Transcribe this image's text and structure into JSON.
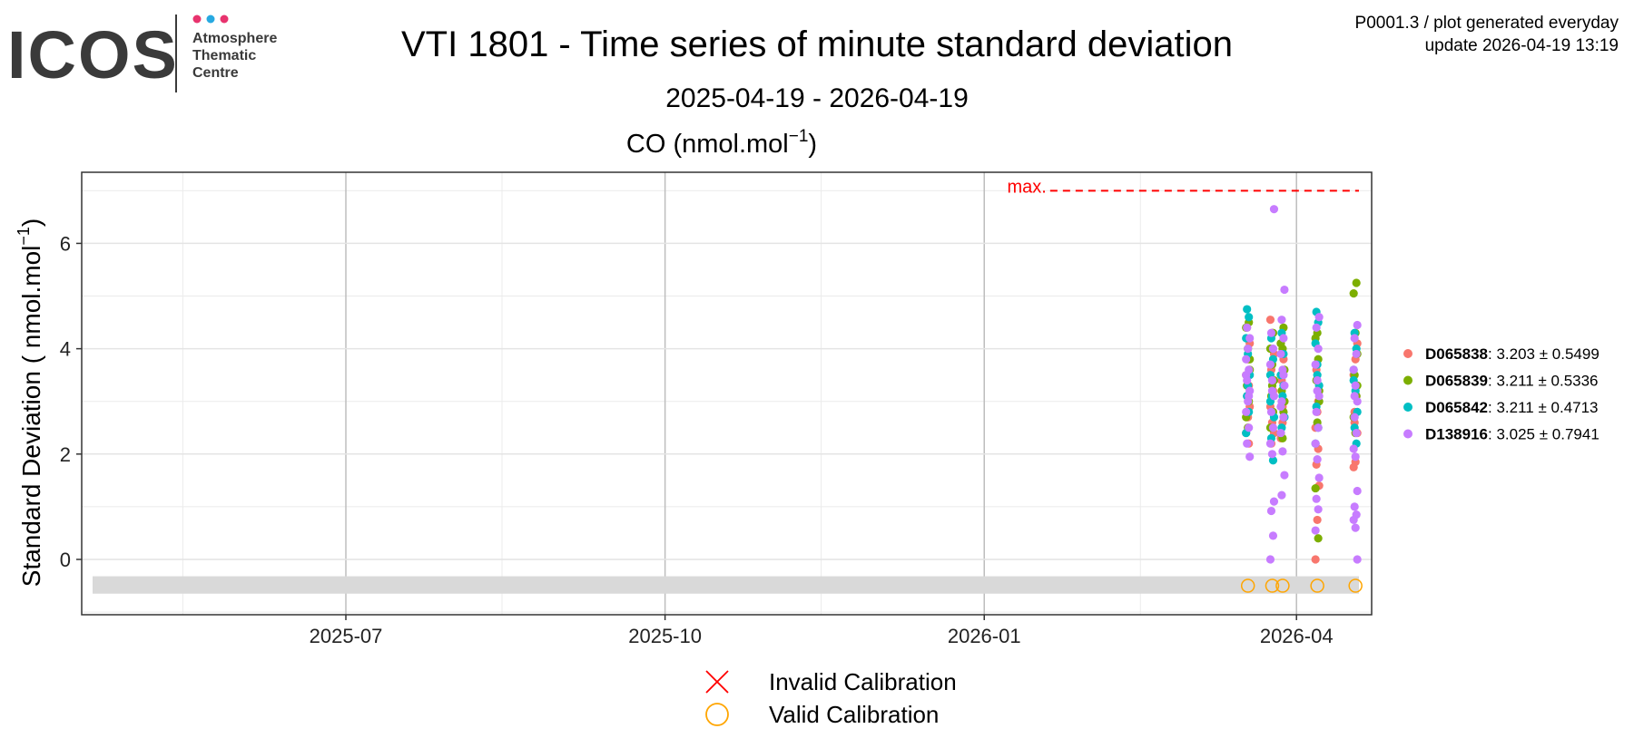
{
  "header": {
    "logo_text": "ICOS",
    "logo_sub": [
      "Atmosphere",
      "Thematic",
      "Centre"
    ],
    "logo_dot_colors": [
      "#e8336e",
      "#27a9e1",
      "#e8336e"
    ],
    "title": "VTI 1801 - Time series of minute standard deviation",
    "subtitle": "2025-04-19 - 2026-04-19",
    "meta_line1": "P0001.3 / plot generated everyday",
    "meta_line2": "update  2026-04-19 13:19"
  },
  "chart_data": {
    "type": "scatter",
    "panel_title_base": "CO (nmol.mol",
    "panel_title_exp": "−1",
    "panel_title_close": ")",
    "ylabel_base": "Standard Deviation ( nmol.mol",
    "ylabel_exp": "−1",
    "ylabel_close": ")",
    "xlim": [
      "2025-04-19",
      "2026-04-19"
    ],
    "ylim": [
      -1.05,
      7.35
    ],
    "x_ticks": [
      "2025-07",
      "2025-10",
      "2026-01",
      "2026-04"
    ],
    "y_ticks": [
      0,
      2,
      4,
      6
    ],
    "grid": true,
    "max_line": {
      "label": "max.",
      "value": 7.0,
      "from": "2026-01-20",
      "to": "2026-04-19",
      "color": "#ff0000"
    },
    "calibration_band": [
      -0.65,
      -0.32
    ],
    "valid_calibrations": {
      "y": -0.5,
      "dates": [
        "2026-03-18",
        "2026-03-25",
        "2026-03-28",
        "2026-04-07",
        "2026-04-18"
      ],
      "color": "#ffa500"
    },
    "legend_position": "right",
    "series": [
      {
        "name": "D065838",
        "stat": ": 3.203 ± 0.5499",
        "color": "#f8766d",
        "clusters": [
          {
            "date": "2026-03-18",
            "points": [
              2.4,
              2.7,
              2.9,
              3.1,
              3.3,
              3.5,
              3.8,
              4.1,
              4.4,
              2.2
            ]
          },
          {
            "date": "2026-03-25",
            "points": [
              4.55,
              4.3,
              3.9,
              3.6,
              3.2,
              2.9,
              2.6,
              2.4,
              2.2,
              3.4
            ]
          },
          {
            "date": "2026-03-28",
            "points": [
              2.3,
              2.6,
              3.0,
              3.4,
              3.8,
              4.1,
              2.9
            ]
          },
          {
            "date": "2026-04-07",
            "points": [
              0.0,
              0.75,
              1.4,
              1.8,
              2.1,
              2.5,
              2.8,
              3.2,
              3.6,
              3.0
            ]
          },
          {
            "date": "2026-04-18",
            "points": [
              1.75,
              1.85,
              2.4,
              2.8,
              3.1,
              3.5,
              3.8,
              4.1,
              2.6
            ]
          }
        ]
      },
      {
        "name": "D065839",
        "stat": ": 3.211 ± 0.5336",
        "color": "#7cae00",
        "clusters": [
          {
            "date": "2026-03-18",
            "points": [
              4.5,
              4.4,
              4.0,
              3.6,
              3.3,
              3.0,
              2.7,
              2.5,
              3.8
            ]
          },
          {
            "date": "2026-03-25",
            "points": [
              4.3,
              4.0,
              3.7,
              3.4,
              3.1,
              2.8,
              2.5,
              3.3
            ]
          },
          {
            "date": "2026-03-28",
            "points": [
              4.4,
              4.1,
              4.0,
              3.6,
              3.2,
              2.8,
              2.4,
              2.3,
              3.0
            ]
          },
          {
            "date": "2026-04-07",
            "points": [
              0.4,
              1.35,
              2.6,
              3.0,
              3.4,
              3.8,
              4.2,
              4.3,
              3.2
            ]
          },
          {
            "date": "2026-04-18",
            "points": [
              5.25,
              5.05,
              4.3,
              3.9,
              3.5,
              3.1,
              2.7,
              2.4,
              3.3
            ]
          }
        ]
      },
      {
        "name": "D065842",
        "stat": ": 3.211 ± 0.4713",
        "color": "#00bfc4",
        "clusters": [
          {
            "date": "2026-03-18",
            "points": [
              4.75,
              4.6,
              4.2,
              3.9,
              3.5,
              3.1,
              2.8,
              2.4,
              3.3
            ]
          },
          {
            "date": "2026-03-25",
            "points": [
              4.2,
              3.8,
              3.5,
              3.1,
              2.7,
              2.3,
              1.88,
              3.0
            ]
          },
          {
            "date": "2026-03-28",
            "points": [
              4.3,
              3.9,
              3.5,
              3.1,
              2.7,
              2.5,
              3.3
            ]
          },
          {
            "date": "2026-04-07",
            "points": [
              4.7,
              4.5,
              4.1,
              3.7,
              3.3,
              2.9,
              2.5,
              2.2,
              3.5
            ]
          },
          {
            "date": "2026-04-18",
            "points": [
              4.3,
              4.0,
              3.6,
              3.2,
              2.8,
              2.5,
              2.2,
              3.4
            ]
          }
        ]
      },
      {
        "name": "D138916",
        "stat": ": 3.025 ± 0.7941",
        "color": "#c77cff",
        "clusters": [
          {
            "date": "2026-03-18",
            "points": [
              1.95,
              2.2,
              2.5,
              2.8,
              3.0,
              3.2,
              3.4,
              3.6,
              3.8,
              4.0,
              4.2,
              4.4,
              3.1,
              3.5
            ]
          },
          {
            "date": "2026-03-25",
            "points": [
              6.65,
              4.3,
              4.0,
              3.7,
              3.4,
              3.1,
              2.8,
              2.5,
              2.2,
              2.0,
              1.1,
              0.92,
              0.45,
              0.0,
              3.2
            ]
          },
          {
            "date": "2026-03-28",
            "points": [
              5.12,
              4.55,
              4.2,
              3.9,
              3.6,
              3.3,
              3.0,
              2.7,
              2.4,
              2.05,
              1.6,
              1.22,
              3.5,
              2.9
            ]
          },
          {
            "date": "2026-04-07",
            "points": [
              4.6,
              4.4,
              4.0,
              3.7,
              3.4,
              3.1,
              2.8,
              2.5,
              2.2,
              1.9,
              1.55,
              1.15,
              0.95,
              0.55,
              3.2
            ]
          },
          {
            "date": "2026-04-18",
            "points": [
              4.45,
              4.2,
              3.9,
              3.6,
              3.3,
              3.0,
              2.7,
              2.4,
              2.1,
              1.95,
              1.3,
              1.0,
              0.85,
              0.75,
              0.6,
              0.0,
              3.1
            ]
          }
        ]
      }
    ],
    "bottom_legend": [
      {
        "symbol": "cross",
        "color": "#ff0000",
        "label": "Invalid Calibration"
      },
      {
        "symbol": "circle",
        "color": "#ffa500",
        "label": "Valid Calibration"
      }
    ]
  }
}
